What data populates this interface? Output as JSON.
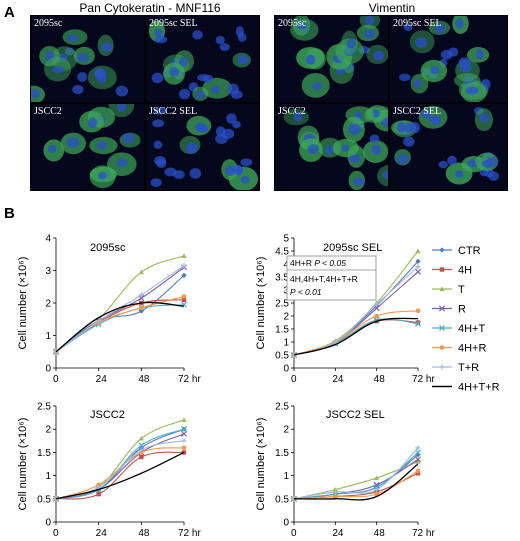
{
  "panel_a": {
    "letter": "A",
    "stains": [
      {
        "title": "Pan Cytokeratin - MNF116",
        "images": [
          "2095sc",
          "2095sc SEL",
          "JSCC2",
          "JSCC2 SEL"
        ]
      },
      {
        "title": "Vimentin",
        "images": [
          "2095sc",
          "2095sc SEL",
          "JSCC2",
          "JSCC2 SEL"
        ]
      }
    ]
  },
  "panel_b": {
    "letter": "B",
    "annotation": {
      "line1_label": "4H+R ",
      "line1_p": "P < 0.05",
      "line2": "4H,4H+T,4H+T+R",
      "line3_p": "P < 0.01"
    }
  },
  "legend": [
    {
      "name": "CTR",
      "color": "#4a7ebb",
      "marker": "diamond"
    },
    {
      "name": "4H",
      "color": "#c0504d",
      "marker": "square"
    },
    {
      "name": "T",
      "color": "#9bbb59",
      "marker": "triangle"
    },
    {
      "name": "R",
      "color": "#7b5ea7",
      "marker": "x"
    },
    {
      "name": "4H+T",
      "color": "#4bacc6",
      "marker": "x"
    },
    {
      "name": "4H+R",
      "color": "#f79646",
      "marker": "circle"
    },
    {
      "name": "T+R",
      "color": "#a3b9e0",
      "marker": "plus"
    },
    {
      "name": "4H+T+R",
      "color": "#000000",
      "marker": "none"
    }
  ],
  "chart_data": [
    {
      "type": "line",
      "title": "2095sc",
      "ylabel": "Cell number (×10⁶)",
      "x": [
        0,
        24,
        48,
        72
      ],
      "xticks": [
        "0",
        "24",
        "48",
        "72 hr"
      ],
      "ylim": [
        0,
        4
      ],
      "yticks": [
        "0",
        "1",
        "2",
        "3",
        "4"
      ],
      "series": [
        {
          "name": "CTR",
          "values": [
            0.5,
            1.45,
            1.75,
            2.85
          ]
        },
        {
          "name": "4H",
          "values": [
            0.5,
            1.4,
            2.0,
            2.1
          ]
        },
        {
          "name": "T",
          "values": [
            0.5,
            1.5,
            2.95,
            3.45
          ]
        },
        {
          "name": "R",
          "values": [
            0.5,
            1.45,
            2.15,
            3.1
          ]
        },
        {
          "name": "4H+T",
          "values": [
            0.5,
            1.35,
            1.85,
            1.95
          ]
        },
        {
          "name": "4H+R",
          "values": [
            0.5,
            1.4,
            1.85,
            2.2
          ]
        },
        {
          "name": "T+R",
          "values": [
            0.5,
            1.45,
            2.25,
            3.15
          ]
        },
        {
          "name": "4H+T+R",
          "values": [
            0.5,
            1.55,
            2.0,
            1.9
          ]
        }
      ]
    },
    {
      "type": "line",
      "title": "2095sc SEL",
      "ylabel": "Cell number (×10⁶)",
      "x": [
        0,
        24,
        48,
        72
      ],
      "xticks": [
        "0",
        "24",
        "48",
        "72 hr"
      ],
      "ylim": [
        0,
        5
      ],
      "yticks": [
        "0",
        "0.5",
        "1",
        "1.5",
        "2",
        "2.5",
        "3",
        "3.5",
        "4",
        "4.5",
        "5"
      ],
      "series": [
        {
          "name": "CTR",
          "values": [
            0.5,
            1.0,
            2.4,
            4.1
          ]
        },
        {
          "name": "4H",
          "values": [
            0.5,
            0.95,
            1.8,
            1.75
          ]
        },
        {
          "name": "T",
          "values": [
            0.5,
            1.05,
            2.5,
            4.5
          ]
        },
        {
          "name": "R",
          "values": [
            0.5,
            0.95,
            2.3,
            3.7
          ]
        },
        {
          "name": "4H+T",
          "values": [
            0.5,
            0.95,
            1.85,
            1.7
          ]
        },
        {
          "name": "4H+R",
          "values": [
            0.5,
            1.0,
            2.0,
            2.2
          ]
        },
        {
          "name": "T+R",
          "values": [
            0.5,
            1.0,
            2.45,
            3.9
          ]
        },
        {
          "name": "4H+T+R",
          "values": [
            0.5,
            0.9,
            1.8,
            1.9
          ]
        }
      ]
    },
    {
      "type": "line",
      "title": "JSCC2",
      "ylabel": "Cell number (×10⁶)",
      "x": [
        0,
        24,
        48,
        72
      ],
      "xticks": [
        "0",
        "24",
        "48",
        "72 hr"
      ],
      "ylim": [
        0,
        2.5
      ],
      "yticks": [
        "0",
        "0.5",
        "1",
        "1.5",
        "2",
        "2.5"
      ],
      "series": [
        {
          "name": "CTR",
          "values": [
            0.5,
            0.7,
            1.6,
            2.0
          ]
        },
        {
          "name": "4H",
          "values": [
            0.5,
            0.6,
            1.4,
            1.5
          ]
        },
        {
          "name": "T",
          "values": [
            0.5,
            0.75,
            1.8,
            2.2
          ]
        },
        {
          "name": "R",
          "values": [
            0.5,
            0.7,
            1.5,
            1.9
          ]
        },
        {
          "name": "4H+T",
          "values": [
            0.5,
            0.7,
            1.65,
            2.0
          ]
        },
        {
          "name": "4H+R",
          "values": [
            0.5,
            0.8,
            1.5,
            1.6
          ]
        },
        {
          "name": "T+R",
          "values": [
            0.5,
            0.75,
            1.55,
            1.75
          ]
        },
        {
          "name": "4H+T+R",
          "values": [
            0.5,
            0.7,
            1.05,
            1.5
          ]
        }
      ]
    },
    {
      "type": "line",
      "title": "JSCC2 SEL",
      "ylabel": "Cell number (×10⁶)",
      "x": [
        0,
        24,
        48,
        72
      ],
      "xticks": [
        "0",
        "24",
        "48",
        "72 hr"
      ],
      "ylim": [
        0,
        2.5
      ],
      "yticks": [
        "0",
        "0.5",
        "1",
        "1.5",
        "2",
        "2.5"
      ],
      "series": [
        {
          "name": "CTR",
          "values": [
            0.5,
            0.6,
            0.75,
            1.45
          ]
        },
        {
          "name": "4H",
          "values": [
            0.5,
            0.55,
            0.65,
            1.05
          ]
        },
        {
          "name": "T",
          "values": [
            0.5,
            0.7,
            0.95,
            1.3
          ]
        },
        {
          "name": "R",
          "values": [
            0.5,
            0.6,
            0.8,
            1.35
          ]
        },
        {
          "name": "4H+T",
          "values": [
            0.5,
            0.6,
            0.75,
            1.5
          ]
        },
        {
          "name": "4H+R",
          "values": [
            0.5,
            0.55,
            0.6,
            1.1
          ]
        },
        {
          "name": "T+R",
          "values": [
            0.5,
            0.65,
            0.7,
            1.6
          ]
        },
        {
          "name": "4H+T+R",
          "values": [
            0.5,
            0.5,
            0.55,
            1.25
          ]
        }
      ]
    }
  ]
}
